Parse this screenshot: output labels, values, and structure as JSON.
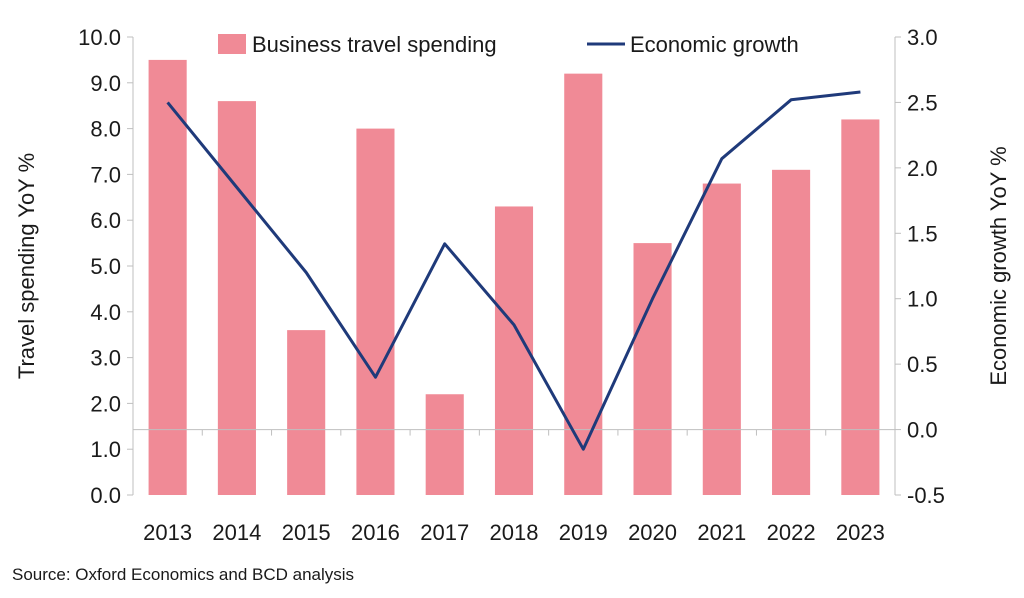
{
  "source_note": "Source: Oxford Economics and BCD analysis",
  "colors": {
    "bar": "#f08a96",
    "line": "#1f3a7a",
    "axis": "#bfbfbf",
    "text": "#1a1a1a"
  },
  "chart_data": {
    "type": "bar",
    "categories": [
      "2013",
      "2014",
      "2015",
      "2016",
      "2017",
      "2018",
      "2019",
      "2020",
      "2021",
      "2022",
      "2023"
    ],
    "series": [
      {
        "name": "Business travel spending",
        "type": "bar",
        "axis": "left",
        "values": [
          9.5,
          8.6,
          3.6,
          8.0,
          2.2,
          6.3,
          9.2,
          5.5,
          6.8,
          7.1,
          8.2
        ]
      },
      {
        "name": "Economic growth",
        "type": "line",
        "axis": "right",
        "values": [
          2.5,
          1.85,
          1.2,
          0.4,
          1.42,
          0.8,
          -0.15,
          1.0,
          2.07,
          2.52,
          2.58
        ]
      }
    ],
    "ylabel": "Travel spending YoY %",
    "y2label": "Economic growth YoY %",
    "ylim": [
      0,
      10
    ],
    "y2lim": [
      -0.5,
      3
    ],
    "yticks": [
      "0.0",
      "1.0",
      "2.0",
      "3.0",
      "4.0",
      "5.0",
      "6.0",
      "7.0",
      "8.0",
      "9.0",
      "10.0"
    ],
    "y2ticks": [
      "-0.5",
      "0.0",
      "0.5",
      "1.0",
      "1.5",
      "2.0",
      "2.5",
      "3.0"
    ],
    "legend_position": "top",
    "grid": false
  }
}
